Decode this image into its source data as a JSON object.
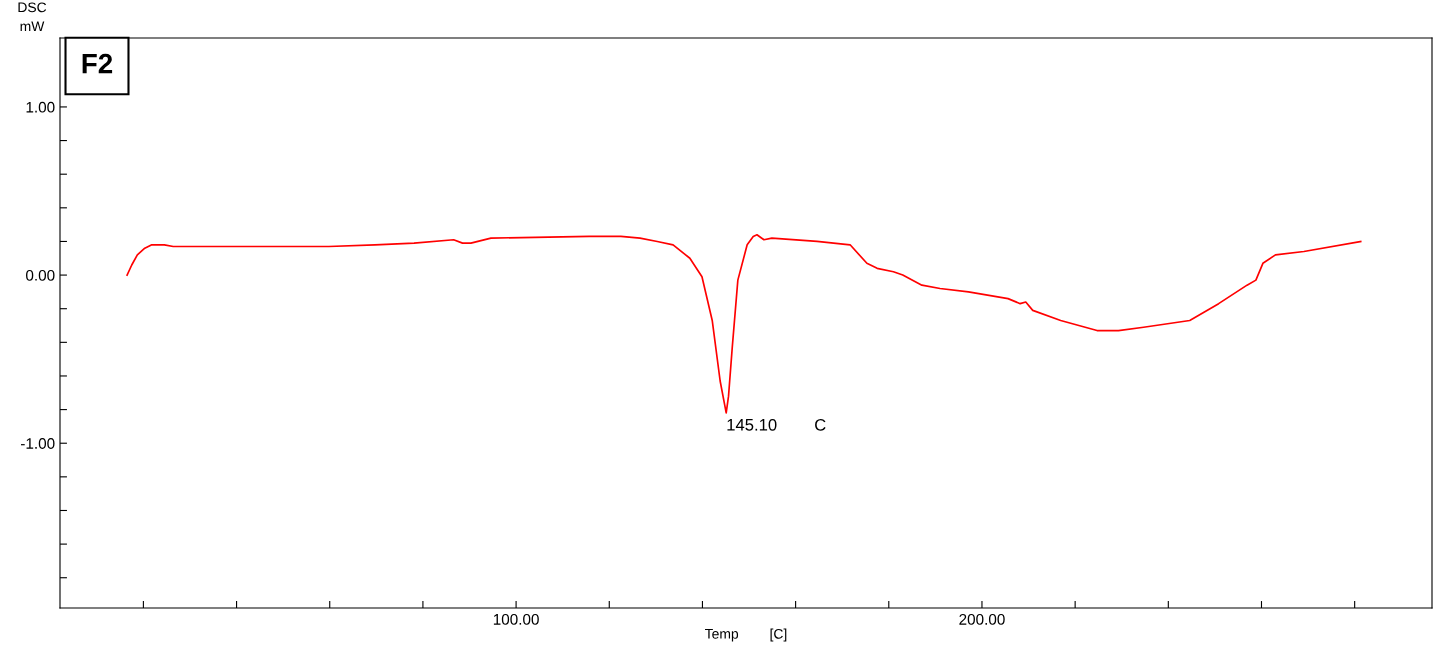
{
  "chart_data": {
    "type": "line",
    "xlabel": "Temp        [C]",
    "ylabel": "DSC\nmW",
    "grid": false,
    "legend": false,
    "marker": "none",
    "line_style": "solid",
    "xlim": [
      2.1,
      296.6
    ],
    "ylim": [
      -1.98,
      1.41
    ],
    "xticks": [
      {
        "value": 20,
        "label": null
      },
      {
        "value": 40,
        "label": null
      },
      {
        "value": 60,
        "label": null
      },
      {
        "value": 80,
        "label": null
      },
      {
        "value": 100,
        "label": "100.00"
      },
      {
        "value": 120,
        "label": null
      },
      {
        "value": 140,
        "label": null
      },
      {
        "value": 160,
        "label": null
      },
      {
        "value": 180,
        "label": null
      },
      {
        "value": 200,
        "label": "200.00"
      },
      {
        "value": 220,
        "label": null
      },
      {
        "value": 240,
        "label": null
      },
      {
        "value": 260,
        "label": null
      },
      {
        "value": 280,
        "label": null
      }
    ],
    "yticks": [
      {
        "value": -1.8,
        "label": null
      },
      {
        "value": -1.6,
        "label": null
      },
      {
        "value": -1.4,
        "label": null
      },
      {
        "value": -1.2,
        "label": null
      },
      {
        "value": -1.0,
        "label": "-1.00"
      },
      {
        "value": -0.8,
        "label": null
      },
      {
        "value": -0.6,
        "label": null
      },
      {
        "value": -0.4,
        "label": null
      },
      {
        "value": -0.2,
        "label": null
      },
      {
        "value": 0,
        "label": "0.00"
      },
      {
        "value": 0.2,
        "label": null
      },
      {
        "value": 0.4,
        "label": null
      },
      {
        "value": 0.6,
        "label": null
      },
      {
        "value": 0.8,
        "label": null
      },
      {
        "value": 1.0,
        "label": "1.00"
      }
    ],
    "x": [
      16.5,
      17.5,
      18.7,
      20.3,
      21.8,
      24.5,
      26.4,
      59.8,
      69.7,
      78.1,
      86.6,
      88.5,
      90.3,
      94.6,
      115.7,
      122.5,
      126.6,
      130.3,
      133.7,
      137.3,
      139.9,
      142.1,
      143.8,
      145.1,
      145.6,
      146.4,
      147.6,
      149.6,
      150.9,
      151.7,
      153.2,
      154.9,
      164.6,
      171.7,
      175.3,
      177.5,
      181.0,
      183.0,
      187.1,
      191.0,
      197.1,
      205.6,
      208.2,
      209.4,
      210.9,
      216.9,
      224.7,
      229.3,
      234.7,
      244.6,
      250.8,
      256.9,
      258.8,
      260.3,
      263.0,
      269.1,
      281.3
    ],
    "series": [
      {
        "color": "#ff0000",
        "values": [
          0.0,
          0.06,
          0.12,
          0.16,
          0.18,
          0.18,
          0.17,
          0.17,
          0.18,
          0.19,
          0.21,
          0.19,
          0.19,
          0.22,
          0.23,
          0.23,
          0.22,
          0.2,
          0.18,
          0.1,
          -0.01,
          -0.27,
          -0.63,
          -0.82,
          -0.72,
          -0.43,
          -0.03,
          0.18,
          0.23,
          0.24,
          0.21,
          0.22,
          0.2,
          0.18,
          0.07,
          0.04,
          0.02,
          0.0,
          -0.06,
          -0.08,
          -0.1,
          -0.14,
          -0.17,
          -0.16,
          -0.21,
          -0.27,
          -0.33,
          -0.33,
          -0.31,
          -0.27,
          -0.17,
          -0.06,
          -0.03,
          0.07,
          0.12,
          0.14,
          0.2
        ]
      }
    ],
    "annotations": [
      "F2",
      {
        "text": "145.10        C",
        "x": 145.1,
        "y": -0.82
      }
    ]
  }
}
